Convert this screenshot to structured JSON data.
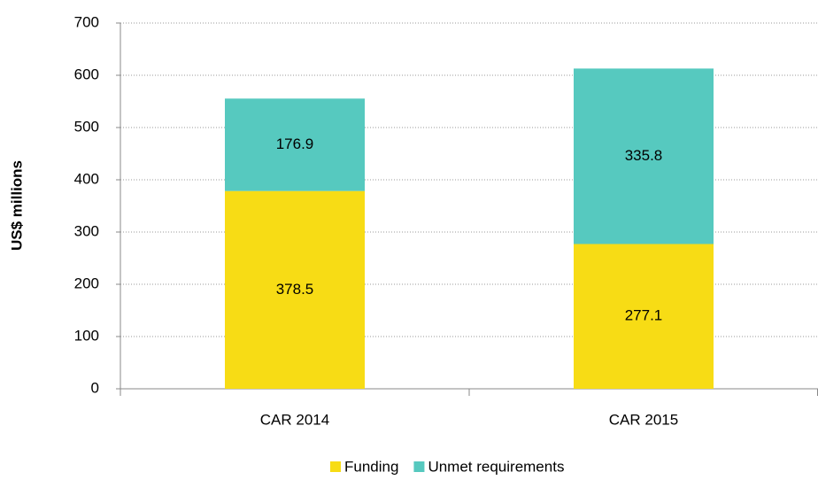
{
  "chart_data": {
    "type": "stacked_bar",
    "y_label": "US$ millions",
    "categories": [
      "CAR 2014",
      "CAR 2015"
    ],
    "series": [
      {
        "name": "Funding",
        "color": "#f7dc15",
        "values": [
          378.5,
          277.1
        ]
      },
      {
        "name": "Unmet requirements",
        "color": "#56c9bf",
        "values": [
          176.9,
          335.8
        ]
      }
    ],
    "ylim": [
      0,
      700
    ],
    "yticks": [
      0,
      100,
      200,
      300,
      400,
      500,
      600,
      700
    ],
    "grid": true,
    "legend": "bottom"
  }
}
